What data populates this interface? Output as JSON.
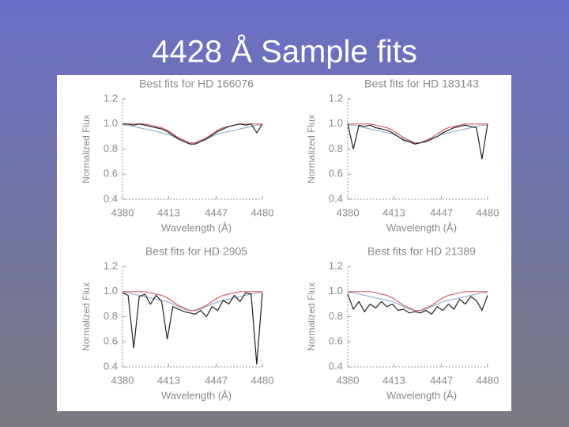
{
  "title": "4428 Å Sample fits",
  "chart_data": [
    {
      "type": "line",
      "title": "Best fits for HD 166076",
      "x_label": "Wavelength (Å)",
      "y_label": "Normalized Flux",
      "x": [
        4380,
        4384,
        4388,
        4392,
        4396,
        4400,
        4404,
        4408,
        4412,
        4416,
        4420,
        4424,
        4428,
        4432,
        4436,
        4440,
        4444,
        4448,
        4452,
        4456,
        4460,
        4464,
        4468,
        4472,
        4476,
        4480
      ],
      "xlim": [
        4380,
        4480
      ],
      "ylim": [
        0.4,
        1.2
      ],
      "xticks": [
        4380,
        4413,
        4447,
        4480
      ],
      "yticks": [
        0.4,
        0.6,
        0.8,
        {
          "value": 1,
          "label": "1.0"
        },
        1.2
      ],
      "series": [
        {
          "color": "#8fb3d9",
          "values": [
            0.99,
            0.99,
            0.98,
            0.97,
            0.96,
            0.95,
            0.94,
            0.93,
            0.92,
            0.9,
            0.88,
            0.86,
            0.85,
            0.85,
            0.86,
            0.88,
            0.9,
            0.92,
            0.93,
            0.94,
            0.95,
            0.96,
            0.97,
            0.98,
            0.99,
            0.99
          ]
        },
        {
          "color": "#d06070",
          "values": [
            1,
            1,
            1,
            1,
            1,
            0.99,
            0.98,
            0.97,
            0.95,
            0.92,
            0.89,
            0.87,
            0.85,
            0.85,
            0.87,
            0.89,
            0.92,
            0.95,
            0.97,
            0.98,
            0.99,
            1,
            1,
            1,
            1,
            1
          ]
        },
        {
          "color": "#222222",
          "values": [
            1,
            1,
            0.99,
            1,
            0.99,
            0.98,
            0.97,
            0.96,
            0.94,
            0.91,
            0.88,
            0.86,
            0.84,
            0.84,
            0.86,
            0.88,
            0.91,
            0.94,
            0.96,
            0.98,
            0.99,
            1,
            0.99,
            1,
            0.93,
            1
          ]
        }
      ]
    },
    {
      "type": "line",
      "title": "Best fits for HD 183143",
      "x_label": "Wavelength (Å)",
      "y_label": "Normalized Flux",
      "x": [
        4380,
        4384,
        4388,
        4392,
        4396,
        4400,
        4404,
        4408,
        4412,
        4416,
        4420,
        4424,
        4428,
        4432,
        4436,
        4440,
        4444,
        4448,
        4452,
        4456,
        4460,
        4464,
        4468,
        4472,
        4476,
        4480
      ],
      "xlim": [
        4380,
        4480
      ],
      "ylim": [
        0.4,
        1.2
      ],
      "xticks": [
        4380,
        4413,
        4447,
        4480
      ],
      "yticks": [
        0.4,
        0.6,
        0.8,
        {
          "value": 1,
          "label": "1.0"
        },
        1.2
      ],
      "series": [
        {
          "color": "#8fb3d9",
          "values": [
            0.99,
            0.99,
            0.98,
            0.97,
            0.96,
            0.95,
            0.94,
            0.93,
            0.92,
            0.9,
            0.88,
            0.86,
            0.85,
            0.85,
            0.86,
            0.88,
            0.9,
            0.92,
            0.93,
            0.94,
            0.95,
            0.96,
            0.97,
            0.98,
            0.99,
            0.99
          ]
        },
        {
          "color": "#d06070",
          "values": [
            1,
            1,
            1,
            1,
            1,
            0.99,
            0.98,
            0.97,
            0.95,
            0.92,
            0.89,
            0.87,
            0.85,
            0.85,
            0.87,
            0.89,
            0.92,
            0.95,
            0.97,
            0.98,
            0.99,
            1,
            1,
            1,
            1,
            1
          ]
        },
        {
          "color": "#222222",
          "values": [
            1,
            0.8,
            0.99,
            0.98,
            0.99,
            0.97,
            0.96,
            0.95,
            0.93,
            0.9,
            0.87,
            0.86,
            0.84,
            0.85,
            0.86,
            0.88,
            0.9,
            0.93,
            0.95,
            0.97,
            0.98,
            0.99,
            0.98,
            0.97,
            0.72,
            1
          ]
        }
      ]
    },
    {
      "type": "line",
      "title": "Best fits for HD 2905",
      "x_label": "Wavelength (Å)",
      "y_label": "Normalized Flux",
      "x": [
        4380,
        4384,
        4388,
        4392,
        4396,
        4400,
        4404,
        4408,
        4412,
        4416,
        4420,
        4424,
        4428,
        4432,
        4436,
        4440,
        4444,
        4448,
        4452,
        4456,
        4460,
        4464,
        4468,
        4472,
        4476,
        4480
      ],
      "xlim": [
        4380,
        4480
      ],
      "ylim": [
        0.4,
        1.2
      ],
      "xticks": [
        4380,
        4413,
        4447,
        4480
      ],
      "yticks": [
        0.4,
        0.6,
        0.8,
        {
          "value": 1,
          "label": "1.0"
        },
        1.2
      ],
      "series": [
        {
          "color": "#8fb3d9",
          "values": [
            0.99,
            0.99,
            0.98,
            0.97,
            0.96,
            0.95,
            0.94,
            0.93,
            0.92,
            0.9,
            0.88,
            0.86,
            0.85,
            0.85,
            0.86,
            0.88,
            0.9,
            0.92,
            0.93,
            0.94,
            0.95,
            0.96,
            0.97,
            0.98,
            0.99,
            0.99
          ]
        },
        {
          "color": "#d06070",
          "values": [
            1,
            1,
            1,
            1,
            1,
            0.99,
            0.98,
            0.97,
            0.95,
            0.92,
            0.89,
            0.87,
            0.85,
            0.85,
            0.87,
            0.89,
            0.92,
            0.95,
            0.97,
            0.98,
            0.99,
            1,
            1,
            1,
            1,
            1
          ]
        },
        {
          "color": "#222222",
          "values": [
            0.99,
            0.97,
            0.55,
            0.96,
            0.98,
            0.9,
            0.97,
            0.92,
            0.62,
            0.88,
            0.86,
            0.84,
            0.83,
            0.82,
            0.85,
            0.8,
            0.88,
            0.85,
            0.93,
            0.9,
            0.97,
            0.92,
            0.99,
            0.98,
            0.42,
            0.99
          ]
        }
      ]
    },
    {
      "type": "line",
      "title": "Best fits for HD 21389",
      "x_label": "Wavelength (Å)",
      "y_label": "Normalized Flux",
      "x": [
        4380,
        4384,
        4388,
        4392,
        4396,
        4400,
        4404,
        4408,
        4412,
        4416,
        4420,
        4424,
        4428,
        4432,
        4436,
        4440,
        4444,
        4448,
        4452,
        4456,
        4460,
        4464,
        4468,
        4472,
        4476,
        4480
      ],
      "xlim": [
        4380,
        4480
      ],
      "ylim": [
        0.4,
        1.2
      ],
      "xticks": [
        4380,
        4413,
        4447,
        4480
      ],
      "yticks": [
        0.4,
        0.6,
        0.8,
        {
          "value": 1,
          "label": "1.0"
        },
        1.2
      ],
      "series": [
        {
          "color": "#8fb3d9",
          "values": [
            0.99,
            0.99,
            0.98,
            0.97,
            0.96,
            0.95,
            0.94,
            0.93,
            0.92,
            0.9,
            0.88,
            0.86,
            0.85,
            0.85,
            0.86,
            0.88,
            0.9,
            0.92,
            0.93,
            0.94,
            0.95,
            0.96,
            0.97,
            0.98,
            0.99,
            0.99
          ]
        },
        {
          "color": "#d06070",
          "values": [
            1,
            1,
            1,
            1,
            1,
            0.99,
            0.98,
            0.97,
            0.95,
            0.92,
            0.89,
            0.87,
            0.85,
            0.85,
            0.87,
            0.89,
            0.92,
            0.95,
            0.97,
            0.98,
            0.99,
            1,
            1,
            1,
            1,
            1
          ]
        },
        {
          "color": "#222222",
          "values": [
            0.98,
            0.86,
            0.92,
            0.84,
            0.9,
            0.87,
            0.92,
            0.88,
            0.9,
            0.85,
            0.86,
            0.83,
            0.84,
            0.83,
            0.85,
            0.82,
            0.88,
            0.85,
            0.9,
            0.86,
            0.94,
            0.9,
            0.96,
            0.93,
            0.85,
            0.97
          ]
        }
      ]
    }
  ]
}
